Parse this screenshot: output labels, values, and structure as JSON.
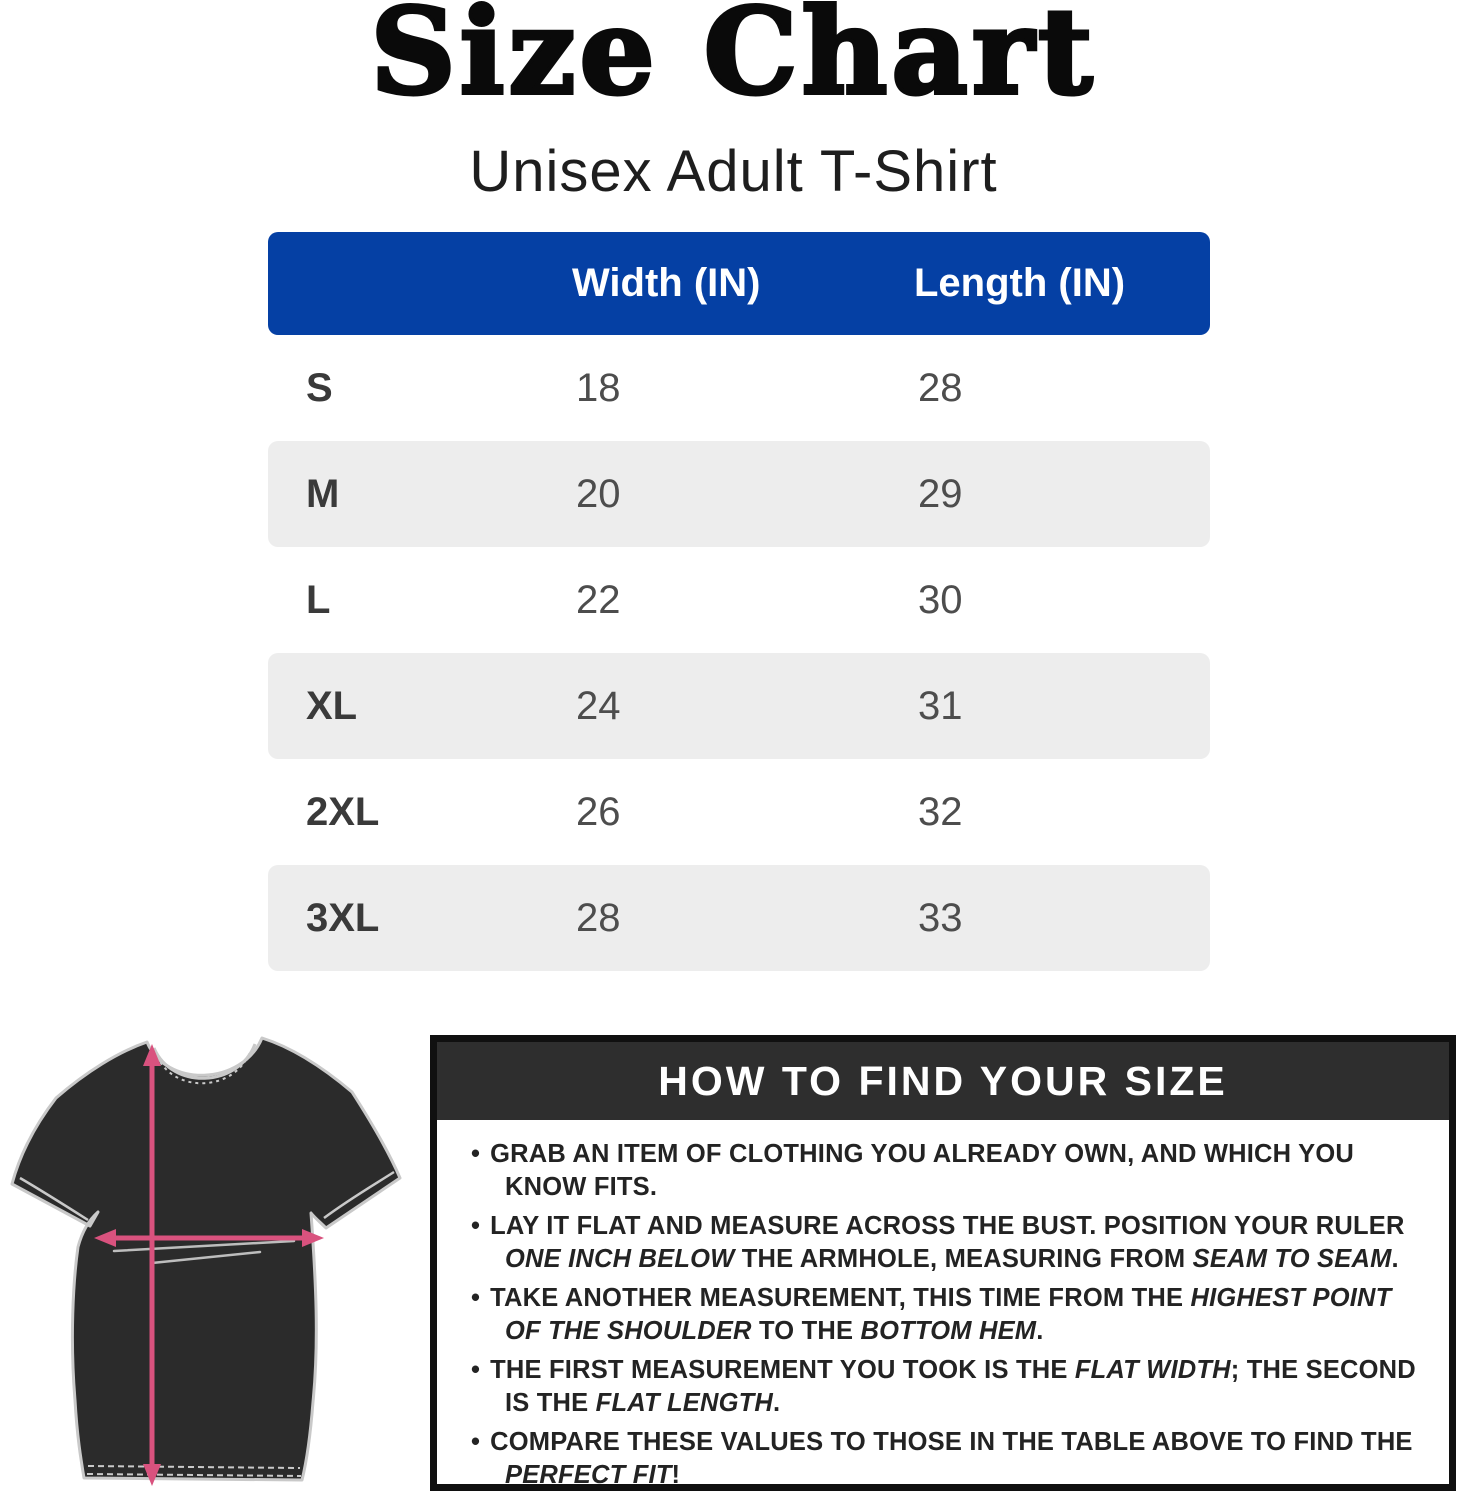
{
  "page": {
    "title": "Size Chart",
    "subtitle": "Unisex Adult T-Shirt"
  },
  "size_table": {
    "columns": [
      "",
      "Width (IN)",
      "Length (IN)"
    ],
    "rows": [
      {
        "size": "S",
        "width": "18",
        "length": "28"
      },
      {
        "size": "M",
        "width": "20",
        "length": "29"
      },
      {
        "size": "L",
        "width": "22",
        "length": "30"
      },
      {
        "size": "XL",
        "width": "24",
        "length": "31"
      },
      {
        "size": "2XL",
        "width": "26",
        "length": "32"
      },
      {
        "size": "3XL",
        "width": "28",
        "length": "33"
      }
    ]
  },
  "measurement_diagram": {
    "label": "t-shirt flat measurement diagram",
    "arrows": [
      "flat-width",
      "flat-length"
    ]
  },
  "how_to": {
    "title": "HOW TO FIND YOUR SIZE",
    "bullet_char": "•",
    "bullets": [
      {
        "segments": [
          {
            "text": "GRAB AN ITEM OF CLOTHING YOU ALREADY OWN, AND WHICH YOU KNOW FITS.",
            "italic": false
          }
        ]
      },
      {
        "segments": [
          {
            "text": "LAY IT FLAT AND MEASURE ACROSS THE BUST. POSITION YOUR RULER ",
            "italic": false
          },
          {
            "text": "ONE INCH BELOW",
            "italic": true
          },
          {
            "text": " THE ARMHOLE, MEASURING FROM ",
            "italic": false
          },
          {
            "text": "SEAM TO SEAM",
            "italic": true
          },
          {
            "text": ".",
            "italic": false
          }
        ]
      },
      {
        "segments": [
          {
            "text": "TAKE ANOTHER MEASUREMENT, THIS TIME FROM THE ",
            "italic": false
          },
          {
            "text": "HIGHEST POINT OF THE SHOULDER",
            "italic": true
          },
          {
            "text": " TO THE ",
            "italic": false
          },
          {
            "text": "BOTTOM HEM",
            "italic": true
          },
          {
            "text": ".",
            "italic": false
          }
        ]
      },
      {
        "segments": [
          {
            "text": "THE FIRST MEASUREMENT YOU TOOK IS THE ",
            "italic": false
          },
          {
            "text": "FLAT WIDTH",
            "italic": true
          },
          {
            "text": "; THE SECOND IS THE ",
            "italic": false
          },
          {
            "text": "FLAT LENGTH",
            "italic": true
          },
          {
            "text": ".",
            "italic": false
          }
        ]
      },
      {
        "segments": [
          {
            "text": "COMPARE THESE VALUES TO THOSE IN THE TABLE ABOVE TO FIND THE ",
            "italic": false
          },
          {
            "text": "PERFECT FIT",
            "italic": true
          },
          {
            "text": "!",
            "italic": false
          }
        ]
      }
    ]
  },
  "colors": {
    "table-header-bg": "#0540a4",
    "alt-row-bg": "#ededed",
    "howto-header-bg": "#2e2e2e",
    "shirt": "#2b2b2b",
    "outline": "#c9c9c9",
    "arrow": "#d9527e"
  }
}
